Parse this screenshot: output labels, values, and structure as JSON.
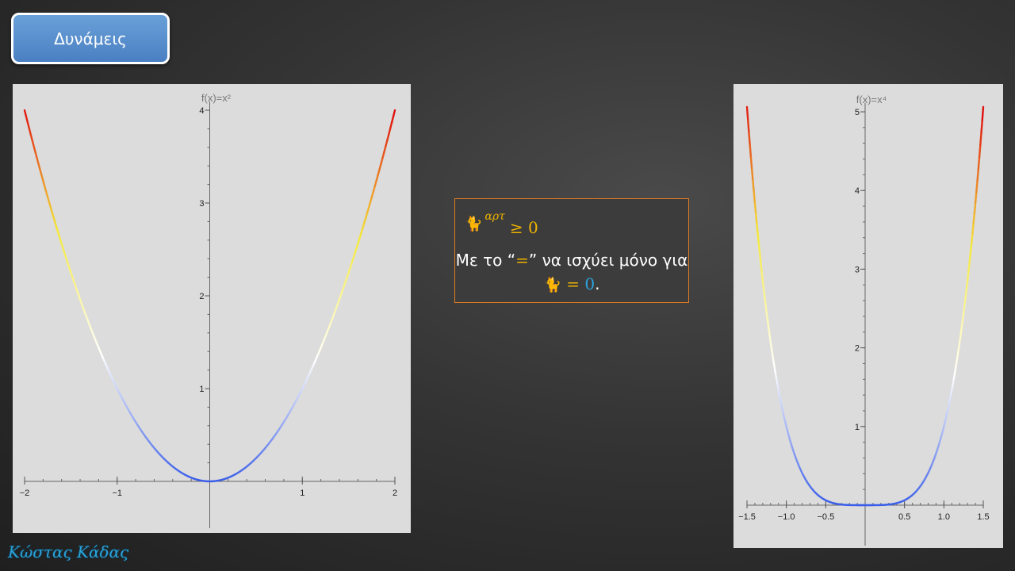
{
  "slide": {
    "title_button": "Δυνάμεις",
    "signature": "Κώστας Κάδας"
  },
  "note": {
    "variable_icon": "cat-icon",
    "exponent": "αρτ",
    "ge_zero": "≥ 0",
    "text_before": "Με το “",
    "equals_sign": "=",
    "text_middle": "” να ισχύει μόνο για ",
    "equals_zero": "= 0",
    "period": ".",
    "colors": {
      "border": "#e07b20",
      "gold": "#f0b400",
      "blue": "#2aa4e0"
    }
  },
  "chart_data": [
    {
      "type": "line",
      "title": "f(x)=x²",
      "function": "x^2",
      "x": [
        -2,
        -1.5,
        -1,
        -0.5,
        0,
        0.5,
        1,
        1.5,
        2
      ],
      "y": [
        4,
        2.25,
        1,
        0.25,
        0,
        0.25,
        1,
        2.25,
        4
      ],
      "xlim": [
        -2,
        2
      ],
      "ylim": [
        0,
        4
      ],
      "x_ticks": [
        "−2",
        "−1",
        "1",
        "2"
      ],
      "y_ticks": [
        "1",
        "2",
        "3",
        "4"
      ],
      "colormap": [
        "#3a5ee8",
        "#ffffff",
        "#f5e93a",
        "#e01010"
      ]
    },
    {
      "type": "line",
      "title": "f(x)=x⁴",
      "function": "x^4",
      "x": [
        -1.5,
        -1,
        -0.5,
        0,
        0.5,
        1,
        1.5
      ],
      "y": [
        5.0625,
        1,
        0.0625,
        0,
        0.0625,
        1,
        5.0625
      ],
      "xlim": [
        -1.5,
        1.5
      ],
      "ylim": [
        0,
        5
      ],
      "x_ticks": [
        "−1.5",
        "−1.0",
        "−0.5",
        "0.5",
        "1.0",
        "1.5"
      ],
      "y_ticks": [
        "1",
        "2",
        "3",
        "4",
        "5"
      ],
      "colormap": [
        "#3a5ee8",
        "#ffffff",
        "#f5e93a",
        "#e01010"
      ]
    }
  ]
}
